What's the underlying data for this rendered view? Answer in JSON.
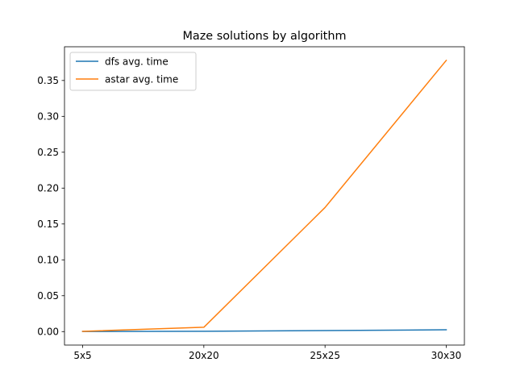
{
  "chart_data": {
    "type": "line",
    "title": "Maze solutions by algorithm",
    "xlabel": "",
    "ylabel": "",
    "categories": [
      "5x5",
      "20x20",
      "25x25",
      "30x30"
    ],
    "series": [
      {
        "name": "dfs avg. time",
        "color": "#1f77b4",
        "values": [
          0.0001,
          0.0005,
          0.0015,
          0.0025
        ]
      },
      {
        "name": "astar avg. time",
        "color": "#ff7f0e",
        "values": [
          0.0003,
          0.006,
          0.173,
          0.378
        ]
      }
    ],
    "ylim": [
      -0.0188,
      0.397
    ],
    "yticks": [
      "0.00",
      "0.05",
      "0.10",
      "0.15",
      "0.20",
      "0.25",
      "0.30",
      "0.35"
    ],
    "grid": false,
    "legend_position": "upper left"
  }
}
